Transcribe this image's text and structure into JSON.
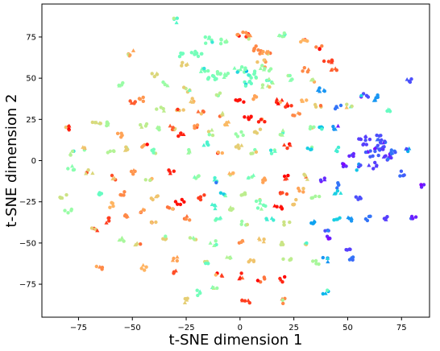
{
  "chart_data": {
    "type": "scatter",
    "title": "",
    "xlabel": "t-SNE dimension 1",
    "ylabel": "t-SNE dimension 2",
    "xlim": [
      -92,
      88
    ],
    "ylim": [
      -95,
      95
    ],
    "x_ticks": [
      -75,
      -50,
      -25,
      0,
      25,
      50,
      75
    ],
    "y_ticks": [
      -75,
      -50,
      -25,
      0,
      25,
      50,
      75
    ],
    "x_tick_labels": [
      "−75",
      "−50",
      "−25",
      "0",
      "25",
      "50",
      "75"
    ],
    "y_tick_labels": [
      "−75",
      "−50",
      "−25",
      "0",
      "25",
      "50",
      "75"
    ],
    "grid": false,
    "legend": "none",
    "colormap": "rainbow",
    "markers": [
      "dot",
      "triangle"
    ],
    "clusters": [
      {
        "x": -30,
        "y": 85,
        "c": 0.42,
        "n": 4
      },
      {
        "x": -50,
        "y": 65,
        "c": 0.78,
        "n": 5
      },
      {
        "x": -27,
        "y": 64,
        "c": 0.47,
        "n": 5
      },
      {
        "x": -20,
        "y": 65,
        "c": 0.48,
        "n": 8
      },
      {
        "x": -15,
        "y": 73,
        "c": 0.49,
        "n": 7
      },
      {
        "x": -8,
        "y": 72,
        "c": 0.52,
        "n": 6
      },
      {
        "x": 2,
        "y": 76,
        "c": 0.8,
        "n": 12
      },
      {
        "x": 8,
        "y": 67,
        "c": 0.82,
        "n": 8
      },
      {
        "x": 12,
        "y": 64,
        "c": 0.78,
        "n": 8
      },
      {
        "x": 20,
        "y": 76,
        "c": 0.55,
        "n": 6
      },
      {
        "x": 30,
        "y": 72,
        "c": 0.75,
        "n": 5
      },
      {
        "x": 37,
        "y": 68,
        "c": 0.83,
        "n": 4
      },
      {
        "x": 12,
        "y": 56,
        "c": 0.55,
        "n": 7
      },
      {
        "x": 14,
        "y": 48,
        "c": 0.58,
        "n": 5
      },
      {
        "x": -17,
        "y": 55,
        "c": 0.49,
        "n": 6
      },
      {
        "x": -13,
        "y": 50,
        "c": 0.48,
        "n": 8
      },
      {
        "x": -8,
        "y": 53,
        "c": 0.52,
        "n": 8
      },
      {
        "x": 0,
        "y": 55,
        "c": 0.5,
        "n": 10
      },
      {
        "x": 6,
        "y": 52,
        "c": 0.48,
        "n": 8
      },
      {
        "x": 3,
        "y": 47,
        "c": 0.45,
        "n": 6
      },
      {
        "x": -26,
        "y": 58,
        "c": 0.7,
        "n": 4
      },
      {
        "x": 10,
        "y": 60,
        "c": 0.72,
        "n": 4
      },
      {
        "x": -40,
        "y": 52,
        "c": 0.68,
        "n": 4
      },
      {
        "x": -56,
        "y": 47,
        "c": 0.55,
        "n": 4
      },
      {
        "x": 23,
        "y": 50,
        "c": 0.52,
        "n": 4
      },
      {
        "x": 30,
        "y": 55,
        "c": 0.82,
        "n": 4
      },
      {
        "x": 34,
        "y": 48,
        "c": 0.62,
        "n": 4
      },
      {
        "x": 41,
        "y": 60,
        "c": 0.92,
        "n": 5
      },
      {
        "x": 44,
        "y": 55,
        "c": 0.88,
        "n": 4
      },
      {
        "x": 79,
        "y": 49,
        "c": 0.1,
        "n": 4
      },
      {
        "x": -35,
        "y": 46,
        "c": 0.56,
        "n": 4
      },
      {
        "x": -25,
        "y": 43,
        "c": 0.7,
        "n": 5
      },
      {
        "x": -22,
        "y": 36,
        "c": 0.72,
        "n": 4
      },
      {
        "x": -10,
        "y": 40,
        "c": 0.62,
        "n": 4
      },
      {
        "x": 0,
        "y": 36,
        "c": 0.98,
        "n": 5
      },
      {
        "x": 6,
        "y": 38,
        "c": 0.78,
        "n": 4
      },
      {
        "x": 12,
        "y": 45,
        "c": 0.6,
        "n": 4
      },
      {
        "x": 18,
        "y": 36,
        "c": 0.95,
        "n": 5
      },
      {
        "x": 22,
        "y": 33,
        "c": 0.93,
        "n": 4
      },
      {
        "x": 30,
        "y": 36,
        "c": 0.75,
        "n": 4
      },
      {
        "x": 36,
        "y": 33,
        "c": 0.7,
        "n": 4
      },
      {
        "x": 38,
        "y": 43,
        "c": 0.2,
        "n": 5
      },
      {
        "x": -50,
        "y": 35,
        "c": 0.88,
        "n": 4
      },
      {
        "x": -45,
        "y": 37,
        "c": 0.8,
        "n": 4
      },
      {
        "x": -37,
        "y": 31,
        "c": 0.62,
        "n": 4
      },
      {
        "x": -28,
        "y": 31,
        "c": 0.72,
        "n": 4
      },
      {
        "x": -18,
        "y": 29,
        "c": 0.86,
        "n": 4
      },
      {
        "x": -8,
        "y": 28,
        "c": 0.65,
        "n": 4
      },
      {
        "x": 4,
        "y": 26,
        "c": 0.98,
        "n": 5
      },
      {
        "x": 10,
        "y": 24,
        "c": 0.96,
        "n": 4
      },
      {
        "x": 26,
        "y": 28,
        "c": 0.82,
        "n": 4
      },
      {
        "x": 33,
        "y": 21,
        "c": 0.55,
        "n": 4
      },
      {
        "x": 45,
        "y": 33,
        "c": 0.15,
        "n": 4
      },
      {
        "x": 51,
        "y": 33,
        "c": 0.65,
        "n": 4
      },
      {
        "x": 58,
        "y": 39,
        "c": 0.1,
        "n": 5
      },
      {
        "x": 63,
        "y": 38,
        "c": 0.2,
        "n": 5
      },
      {
        "x": 70,
        "y": 30,
        "c": 0.45,
        "n": 4
      },
      {
        "x": -80,
        "y": 20,
        "c": 0.95,
        "n": 5
      },
      {
        "x": -67,
        "y": 23,
        "c": 0.68,
        "n": 6
      },
      {
        "x": -62,
        "y": 23,
        "c": 0.58,
        "n": 5
      },
      {
        "x": -55,
        "y": 16,
        "c": 0.78,
        "n": 4
      },
      {
        "x": -45,
        "y": 22,
        "c": 0.62,
        "n": 4
      },
      {
        "x": -37,
        "y": 19,
        "c": 0.58,
        "n": 4
      },
      {
        "x": -32,
        "y": 20,
        "c": 0.88,
        "n": 5
      },
      {
        "x": -27,
        "y": 15,
        "c": 0.96,
        "n": 5
      },
      {
        "x": -20,
        "y": 20,
        "c": 0.8,
        "n": 4
      },
      {
        "x": -13,
        "y": 17,
        "c": 0.62,
        "n": 4
      },
      {
        "x": -6,
        "y": 22,
        "c": 0.74,
        "n": 4
      },
      {
        "x": 0,
        "y": 16,
        "c": 0.55,
        "n": 4
      },
      {
        "x": 8,
        "y": 18,
        "c": 0.7,
        "n": 4
      },
      {
        "x": 20,
        "y": 17,
        "c": 0.58,
        "n": 4
      },
      {
        "x": 38,
        "y": 20,
        "c": 0.28,
        "n": 4
      },
      {
        "x": 45,
        "y": 20,
        "c": 0.2,
        "n": 4
      },
      {
        "x": -78,
        "y": 5,
        "c": 0.6,
        "n": 4
      },
      {
        "x": -73,
        "y": 7,
        "c": 0.72,
        "n": 4
      },
      {
        "x": -60,
        "y": 6,
        "c": 0.6,
        "n": 4
      },
      {
        "x": -53,
        "y": 8,
        "c": 0.7,
        "n": 4
      },
      {
        "x": -44,
        "y": 9,
        "c": 0.78,
        "n": 4
      },
      {
        "x": -40,
        "y": 5,
        "c": 0.48,
        "n": 4
      },
      {
        "x": -25,
        "y": 6,
        "c": 0.56,
        "n": 4
      },
      {
        "x": -15,
        "y": 10,
        "c": 0.4,
        "n": 4
      },
      {
        "x": -10,
        "y": 5,
        "c": 0.76,
        "n": 4
      },
      {
        "x": 0,
        "y": 8,
        "c": 0.7,
        "n": 4
      },
      {
        "x": 6,
        "y": 5,
        "c": 0.62,
        "n": 4
      },
      {
        "x": 15,
        "y": 6,
        "c": 0.45,
        "n": 4
      },
      {
        "x": 22,
        "y": 9,
        "c": 0.92,
        "n": 4
      },
      {
        "x": 32,
        "y": 7,
        "c": 0.3,
        "n": 4
      },
      {
        "x": 45,
        "y": 7,
        "c": 0.38,
        "n": 4
      },
      {
        "x": 58,
        "y": 12,
        "c": 0.08,
        "n": 10
      },
      {
        "x": 62,
        "y": 5,
        "c": 0.12,
        "n": 12
      },
      {
        "x": 66,
        "y": 9,
        "c": 0.1,
        "n": 10
      },
      {
        "x": 68,
        "y": 2,
        "c": 0.07,
        "n": 8
      },
      {
        "x": 72,
        "y": 5,
        "c": 0.15,
        "n": 6
      },
      {
        "x": 65,
        "y": 14,
        "c": 0.1,
        "n": 6
      },
      {
        "x": 78,
        "y": 7,
        "c": 0.22,
        "n": 4
      },
      {
        "x": 52,
        "y": 3,
        "c": 0.05,
        "n": 5
      },
      {
        "x": 55,
        "y": -4,
        "c": 0.1,
        "n": 5
      },
      {
        "x": 48,
        "y": -3,
        "c": 0.06,
        "n": 4
      },
      {
        "x": 62,
        "y": -3,
        "c": 0.08,
        "n": 5
      },
      {
        "x": 75,
        "y": -8,
        "c": 0.12,
        "n": 4
      },
      {
        "x": 84,
        "y": -15,
        "c": 0.05,
        "n": 3
      },
      {
        "x": -78,
        "y": -5,
        "c": 0.52,
        "n": 4
      },
      {
        "x": -70,
        "y": -7,
        "c": 0.68,
        "n": 4
      },
      {
        "x": -58,
        "y": -10,
        "c": 0.72,
        "n": 4
      },
      {
        "x": -50,
        "y": -7,
        "c": 0.8,
        "n": 4
      },
      {
        "x": -42,
        "y": -12,
        "c": 0.62,
        "n": 4
      },
      {
        "x": -32,
        "y": -7,
        "c": 0.96,
        "n": 4
      },
      {
        "x": -20,
        "y": -10,
        "c": 0.55,
        "n": 4
      },
      {
        "x": -12,
        "y": -12,
        "c": 0.4,
        "n": 4
      },
      {
        "x": -5,
        "y": -8,
        "c": 0.75,
        "n": 4
      },
      {
        "x": 5,
        "y": -10,
        "c": 0.48,
        "n": 4
      },
      {
        "x": 12,
        "y": -12,
        "c": 0.78,
        "n": 4
      },
      {
        "x": 22,
        "y": -10,
        "c": 0.92,
        "n": 4
      },
      {
        "x": 30,
        "y": -10,
        "c": 0.68,
        "n": 4
      },
      {
        "x": 38,
        "y": -12,
        "c": 0.05,
        "n": 4
      },
      {
        "x": 45,
        "y": -15,
        "c": 0.15,
        "n": 4
      },
      {
        "x": -65,
        "y": -20,
        "c": 0.45,
        "n": 4
      },
      {
        "x": -55,
        "y": -20,
        "c": 0.82,
        "n": 4
      },
      {
        "x": -40,
        "y": -22,
        "c": 0.72,
        "n": 4
      },
      {
        "x": -28,
        "y": -25,
        "c": 0.98,
        "n": 5
      },
      {
        "x": -18,
        "y": -22,
        "c": 0.92,
        "n": 4
      },
      {
        "x": -8,
        "y": -20,
        "c": 0.3,
        "n": 4
      },
      {
        "x": 2,
        "y": -20,
        "c": 0.62,
        "n": 4
      },
      {
        "x": 8,
        "y": -25,
        "c": 0.5,
        "n": 4
      },
      {
        "x": 20,
        "y": -20,
        "c": 0.9,
        "n": 4
      },
      {
        "x": 28,
        "y": -18,
        "c": 0.78,
        "n": 4
      },
      {
        "x": 35,
        "y": -22,
        "c": 0.58,
        "n": 4
      },
      {
        "x": 45,
        "y": -20,
        "c": 0.3,
        "n": 4
      },
      {
        "x": 55,
        "y": -22,
        "c": 0.1,
        "n": 4
      },
      {
        "x": -82,
        "y": -22,
        "c": 0.65,
        "n": 4
      },
      {
        "x": -80,
        "y": -30,
        "c": 0.55,
        "n": 4
      },
      {
        "x": -60,
        "y": -27,
        "c": 0.75,
        "n": 4
      },
      {
        "x": -45,
        "y": -30,
        "c": 0.78,
        "n": 4
      },
      {
        "x": -32,
        "y": -28,
        "c": 0.85,
        "n": 4
      },
      {
        "x": -13,
        "y": -28,
        "c": 0.4,
        "n": 4
      },
      {
        "x": -5,
        "y": -30,
        "c": 0.62,
        "n": 4
      },
      {
        "x": 10,
        "y": -28,
        "c": 0.48,
        "n": 4
      },
      {
        "x": 18,
        "y": -28,
        "c": 0.98,
        "n": 5
      },
      {
        "x": 25,
        "y": -25,
        "c": 0.72,
        "n": 4
      },
      {
        "x": -62,
        "y": -36,
        "c": 0.92,
        "n": 4
      },
      {
        "x": -52,
        "y": -34,
        "c": 0.82,
        "n": 4
      },
      {
        "x": -40,
        "y": -38,
        "c": 0.72,
        "n": 4
      },
      {
        "x": -25,
        "y": -35,
        "c": 0.85,
        "n": 4
      },
      {
        "x": -10,
        "y": -35,
        "c": 0.45,
        "n": 4
      },
      {
        "x": 2,
        "y": -38,
        "c": 0.55,
        "n": 4
      },
      {
        "x": 14,
        "y": -35,
        "c": 0.38,
        "n": 4
      },
      {
        "x": 22,
        "y": -38,
        "c": 0.65,
        "n": 4
      },
      {
        "x": 35,
        "y": -38,
        "c": 0.22,
        "n": 5
      },
      {
        "x": 40,
        "y": -42,
        "c": 0.1,
        "n": 4
      },
      {
        "x": 45,
        "y": -35,
        "c": 0.3,
        "n": 4
      },
      {
        "x": 52,
        "y": -35,
        "c": 0.2,
        "n": 4
      },
      {
        "x": 60,
        "y": -35,
        "c": 0.15,
        "n": 4
      },
      {
        "x": 68,
        "y": -35,
        "c": 0.08,
        "n": 4
      },
      {
        "x": 80,
        "y": -35,
        "c": 0.04,
        "n": 4
      },
      {
        "x": -68,
        "y": -42,
        "c": 0.7,
        "n": 4
      },
      {
        "x": -55,
        "y": -48,
        "c": 0.58,
        "n": 4
      },
      {
        "x": -48,
        "y": -50,
        "c": 0.68,
        "n": 4
      },
      {
        "x": -35,
        "y": -47,
        "c": 0.7,
        "n": 4
      },
      {
        "x": -22,
        "y": -48,
        "c": 0.62,
        "n": 4
      },
      {
        "x": -12,
        "y": -50,
        "c": 0.55,
        "n": 4
      },
      {
        "x": 0,
        "y": -50,
        "c": 0.8,
        "n": 4
      },
      {
        "x": 10,
        "y": -48,
        "c": 0.72,
        "n": 4
      },
      {
        "x": 20,
        "y": -50,
        "c": 0.65,
        "n": 4
      },
      {
        "x": 30,
        "y": -50,
        "c": 0.5,
        "n": 4
      },
      {
        "x": 42,
        "y": -47,
        "c": 0.05,
        "n": 4
      },
      {
        "x": 50,
        "y": -55,
        "c": 0.08,
        "n": 4
      },
      {
        "x": -30,
        "y": -60,
        "c": 0.78,
        "n": 4
      },
      {
        "x": -15,
        "y": -62,
        "c": 0.45,
        "n": 4
      },
      {
        "x": -5,
        "y": -60,
        "c": 0.6,
        "n": 4
      },
      {
        "x": 5,
        "y": -60,
        "c": 0.72,
        "n": 4
      },
      {
        "x": 22,
        "y": -60,
        "c": 0.62,
        "n": 4
      },
      {
        "x": 35,
        "y": -62,
        "c": 0.58,
        "n": 4
      },
      {
        "x": 40,
        "y": -60,
        "c": 0.2,
        "n": 4
      },
      {
        "x": 52,
        "y": -60,
        "c": 0.15,
        "n": 4
      },
      {
        "x": -65,
        "y": -65,
        "c": 0.82,
        "n": 4
      },
      {
        "x": -45,
        "y": -65,
        "c": 0.75,
        "n": 4
      },
      {
        "x": -30,
        "y": -68,
        "c": 0.9,
        "n": 4
      },
      {
        "x": -10,
        "y": -70,
        "c": 0.92,
        "n": 4
      },
      {
        "x": 0,
        "y": -70,
        "c": 0.96,
        "n": 4
      },
      {
        "x": 10,
        "y": -72,
        "c": 0.85,
        "n": 4
      },
      {
        "x": 20,
        "y": -72,
        "c": 0.95,
        "n": 4
      },
      {
        "x": -20,
        "y": -80,
        "c": 0.48,
        "n": 4
      },
      {
        "x": -12,
        "y": -78,
        "c": 0.55,
        "n": 4
      },
      {
        "x": 3,
        "y": -85,
        "c": 0.92,
        "n": 5
      },
      {
        "x": 20,
        "y": -85,
        "c": 0.82,
        "n": 4
      },
      {
        "x": 40,
        "y": -80,
        "c": 0.25,
        "n": 4
      },
      {
        "x": -25,
        "y": -85,
        "c": 0.7,
        "n": 4
      }
    ]
  }
}
